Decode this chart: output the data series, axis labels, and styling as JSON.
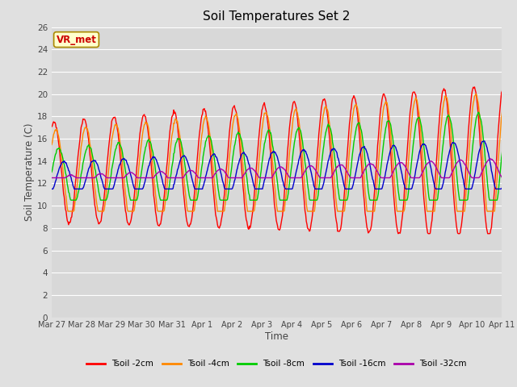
{
  "title": "Soil Temperatures Set 2",
  "xlabel": "Time",
  "ylabel": "Soil Temperature (C)",
  "ylim": [
    0,
    26
  ],
  "yticks": [
    0,
    2,
    4,
    6,
    8,
    10,
    12,
    14,
    16,
    18,
    20,
    22,
    24,
    26
  ],
  "background_color": "#e0e0e0",
  "plot_bg_color": "#d8d8d8",
  "grid_color": "#ffffff",
  "series_colors": {
    "Tsoil -2cm": "#ff0000",
    "Tsoil -4cm": "#ff8800",
    "Tsoil -8cm": "#00cc00",
    "Tsoil -16cm": "#0000cc",
    "Tsoil -32cm": "#aa00aa"
  },
  "xtick_labels": [
    "Mar 27",
    "Mar 28",
    "Mar 29",
    "Mar 30",
    "Mar 31",
    "Apr 1",
    "Apr 2",
    "Apr 3",
    "Apr 4",
    "Apr 5",
    "Apr 6",
    "Apr 7",
    "Apr 8",
    "Apr 9",
    "Apr 10",
    "Apr 11"
  ],
  "annotation_text": "VR_met",
  "annotation_color": "#cc0000",
  "annotation_bg": "#ffffcc",
  "annotation_border": "#aa8800",
  "figsize": [
    6.4,
    4.8
  ],
  "dpi": 100
}
